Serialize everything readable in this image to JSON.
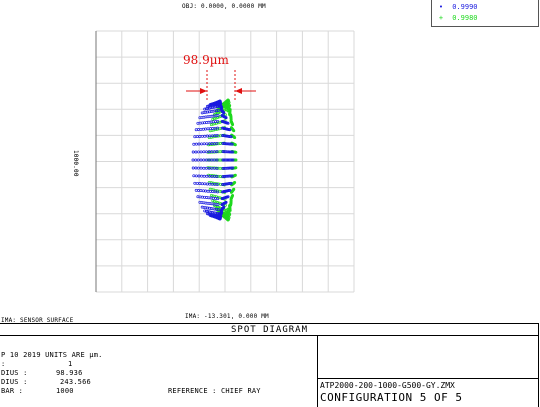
{
  "header": {
    "obj_label": "OBJ: 0.0000, 0.0000 MM"
  },
  "legend": {
    "items": [
      {
        "label": "0.9990",
        "color": "#1a1adf"
      },
      {
        "label": "0.9980",
        "color": "#1ed81e"
      }
    ]
  },
  "plot": {
    "scale_label": "1000.00",
    "measure_label": "98.9µm",
    "measure_color": "#e01010",
    "ima_label": "IMA: -13.301, 0.000 MM",
    "surface_label": "IMA: SENSOR SURFACE",
    "grid_color": "#d9d9d9",
    "series": [
      {
        "name": "0.9990",
        "color": "#1a1adf"
      },
      {
        "name": "0.9980",
        "color": "#1ed81e"
      }
    ]
  },
  "footer": {
    "title": "SPOT DIAGRAM",
    "date_line": "P 10 2019  UNITS ARE µm.",
    "line2_value": "1",
    "line3_label": "DIUS  :",
    "line3_value": "98.936",
    "line4_label": "DIUS  :",
    "line4_value": "243.566",
    "line5_label": "BAR   :",
    "line5_value": "1000",
    "line2_label": "       :",
    "reference": "REFERENCE   : CHIEF RAY",
    "filename": "ATP2000-200-1000-G500-GY.ZMX",
    "configuration": "CONFIGURATION 5 OF 5"
  }
}
